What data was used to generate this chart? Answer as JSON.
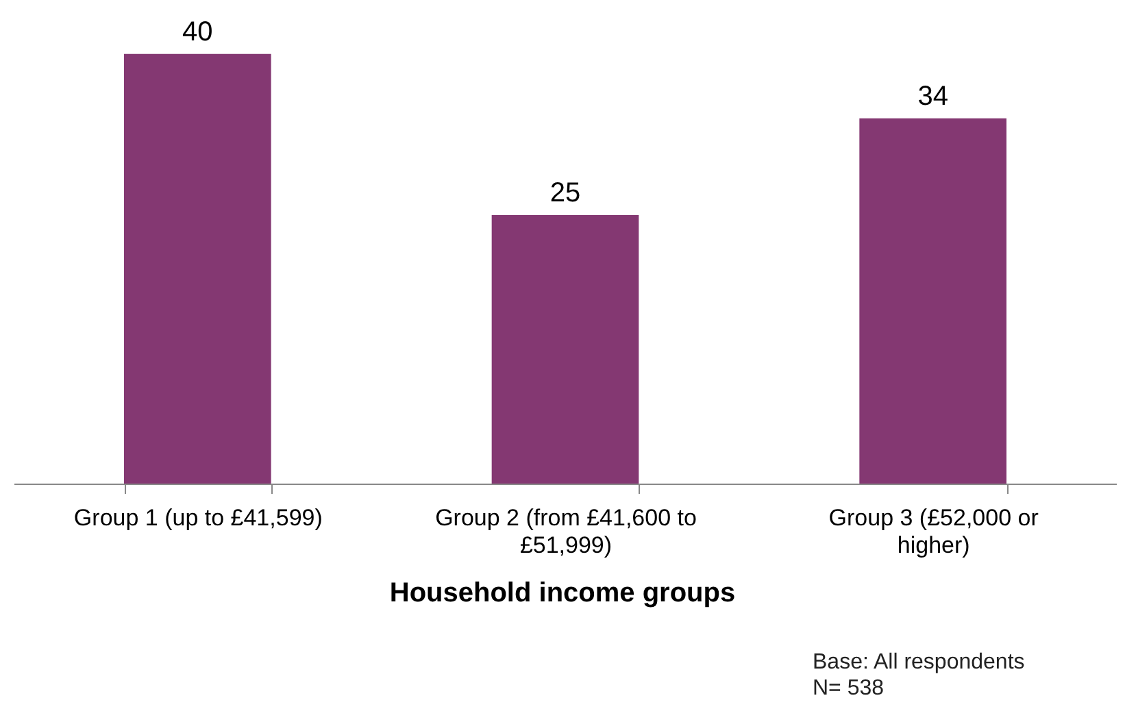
{
  "chart_data": {
    "type": "bar",
    "xlabel": "Household income groups",
    "categories": [
      "Group 1 (up to £41,599)",
      "Group 2 (from £41,600 to £51,999)",
      "Group 3 (£52,000 or higher)"
    ],
    "values": [
      40,
      25,
      34
    ],
    "color": "#843872",
    "data_labels": true,
    "annotations": [
      "Base: All respondents",
      "N= 538"
    ]
  }
}
